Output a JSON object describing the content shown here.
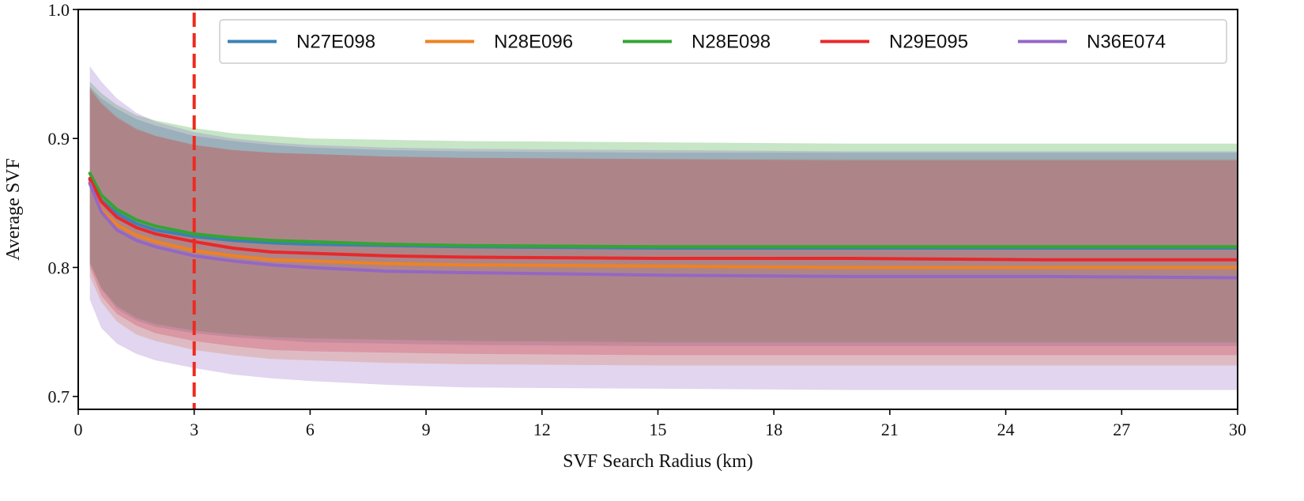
{
  "chart_data": {
    "type": "line",
    "title": "",
    "xlabel": "SVF Search Radius (km)",
    "ylabel": "Average SVF",
    "xlim": [
      0,
      30
    ],
    "ylim": [
      0.69,
      1.0
    ],
    "xticks": [
      0,
      3,
      6,
      9,
      12,
      15,
      18,
      21,
      24,
      27,
      30
    ],
    "yticks": [
      0.7,
      0.8,
      0.9,
      1.0
    ],
    "ytick_labels": [
      "0.7",
      "0.8",
      "0.9",
      "1.0"
    ],
    "grid": false,
    "legend_position": "top",
    "vline": {
      "x": 3,
      "color": "#ee2a1e",
      "style": "dashed"
    },
    "x": [
      0.3,
      0.6,
      1,
      1.5,
      2,
      3,
      4,
      5,
      6,
      8,
      10,
      15,
      20,
      25,
      30
    ],
    "series": [
      {
        "name": "N27E098",
        "color": "#3b82b4",
        "values": [
          0.868,
          0.852,
          0.842,
          0.834,
          0.829,
          0.824,
          0.821,
          0.819,
          0.818,
          0.817,
          0.816,
          0.815,
          0.815,
          0.815,
          0.815
        ],
        "band_upper": [
          0.94,
          0.931,
          0.923,
          0.915,
          0.91,
          0.902,
          0.898,
          0.895,
          0.893,
          0.891,
          0.89,
          0.889,
          0.889,
          0.889,
          0.889
        ],
        "band_lower": [
          0.803,
          0.783,
          0.768,
          0.759,
          0.754,
          0.749,
          0.746,
          0.744,
          0.742,
          0.741,
          0.74,
          0.739,
          0.739,
          0.739,
          0.739
        ]
      },
      {
        "name": "N28E096",
        "color": "#ef8222",
        "values": [
          0.866,
          0.845,
          0.833,
          0.825,
          0.82,
          0.813,
          0.809,
          0.806,
          0.805,
          0.803,
          0.802,
          0.801,
          0.8,
          0.8,
          0.8
        ],
        "band_upper": [
          0.94,
          0.928,
          0.917,
          0.908,
          0.902,
          0.895,
          0.891,
          0.889,
          0.888,
          0.886,
          0.885,
          0.884,
          0.884,
          0.884,
          0.884
        ],
        "band_lower": [
          0.793,
          0.773,
          0.758,
          0.748,
          0.743,
          0.736,
          0.732,
          0.729,
          0.728,
          0.726,
          0.725,
          0.724,
          0.724,
          0.724,
          0.724
        ]
      },
      {
        "name": "N28E098",
        "color": "#34a534",
        "values": [
          0.873,
          0.856,
          0.845,
          0.837,
          0.832,
          0.826,
          0.823,
          0.821,
          0.82,
          0.818,
          0.817,
          0.816,
          0.816,
          0.816,
          0.816
        ],
        "band_upper": [
          0.944,
          0.935,
          0.926,
          0.918,
          0.914,
          0.908,
          0.904,
          0.902,
          0.9,
          0.899,
          0.898,
          0.897,
          0.896,
          0.896,
          0.896
        ],
        "band_lower": [
          0.804,
          0.784,
          0.77,
          0.761,
          0.756,
          0.751,
          0.748,
          0.746,
          0.745,
          0.744,
          0.743,
          0.742,
          0.742,
          0.742,
          0.742
        ]
      },
      {
        "name": "N29E095",
        "color": "#e8282b",
        "values": [
          0.869,
          0.851,
          0.839,
          0.831,
          0.826,
          0.82,
          0.815,
          0.812,
          0.811,
          0.809,
          0.808,
          0.807,
          0.807,
          0.806,
          0.806
        ],
        "band_upper": [
          0.938,
          0.927,
          0.916,
          0.907,
          0.902,
          0.895,
          0.891,
          0.889,
          0.888,
          0.886,
          0.885,
          0.884,
          0.883,
          0.883,
          0.883
        ],
        "band_lower": [
          0.8,
          0.778,
          0.764,
          0.755,
          0.749,
          0.743,
          0.739,
          0.736,
          0.735,
          0.734,
          0.733,
          0.732,
          0.732,
          0.732,
          0.732
        ]
      },
      {
        "name": "N36E074",
        "color": "#9467c4",
        "values": [
          0.865,
          0.843,
          0.829,
          0.821,
          0.816,
          0.809,
          0.805,
          0.802,
          0.8,
          0.797,
          0.796,
          0.794,
          0.793,
          0.793,
          0.792
        ],
        "band_upper": [
          0.956,
          0.944,
          0.931,
          0.92,
          0.913,
          0.905,
          0.9,
          0.897,
          0.895,
          0.893,
          0.892,
          0.891,
          0.89,
          0.89,
          0.89
        ],
        "band_lower": [
          0.775,
          0.753,
          0.741,
          0.733,
          0.728,
          0.722,
          0.717,
          0.714,
          0.712,
          0.709,
          0.707,
          0.706,
          0.705,
          0.705,
          0.705
        ]
      }
    ]
  }
}
